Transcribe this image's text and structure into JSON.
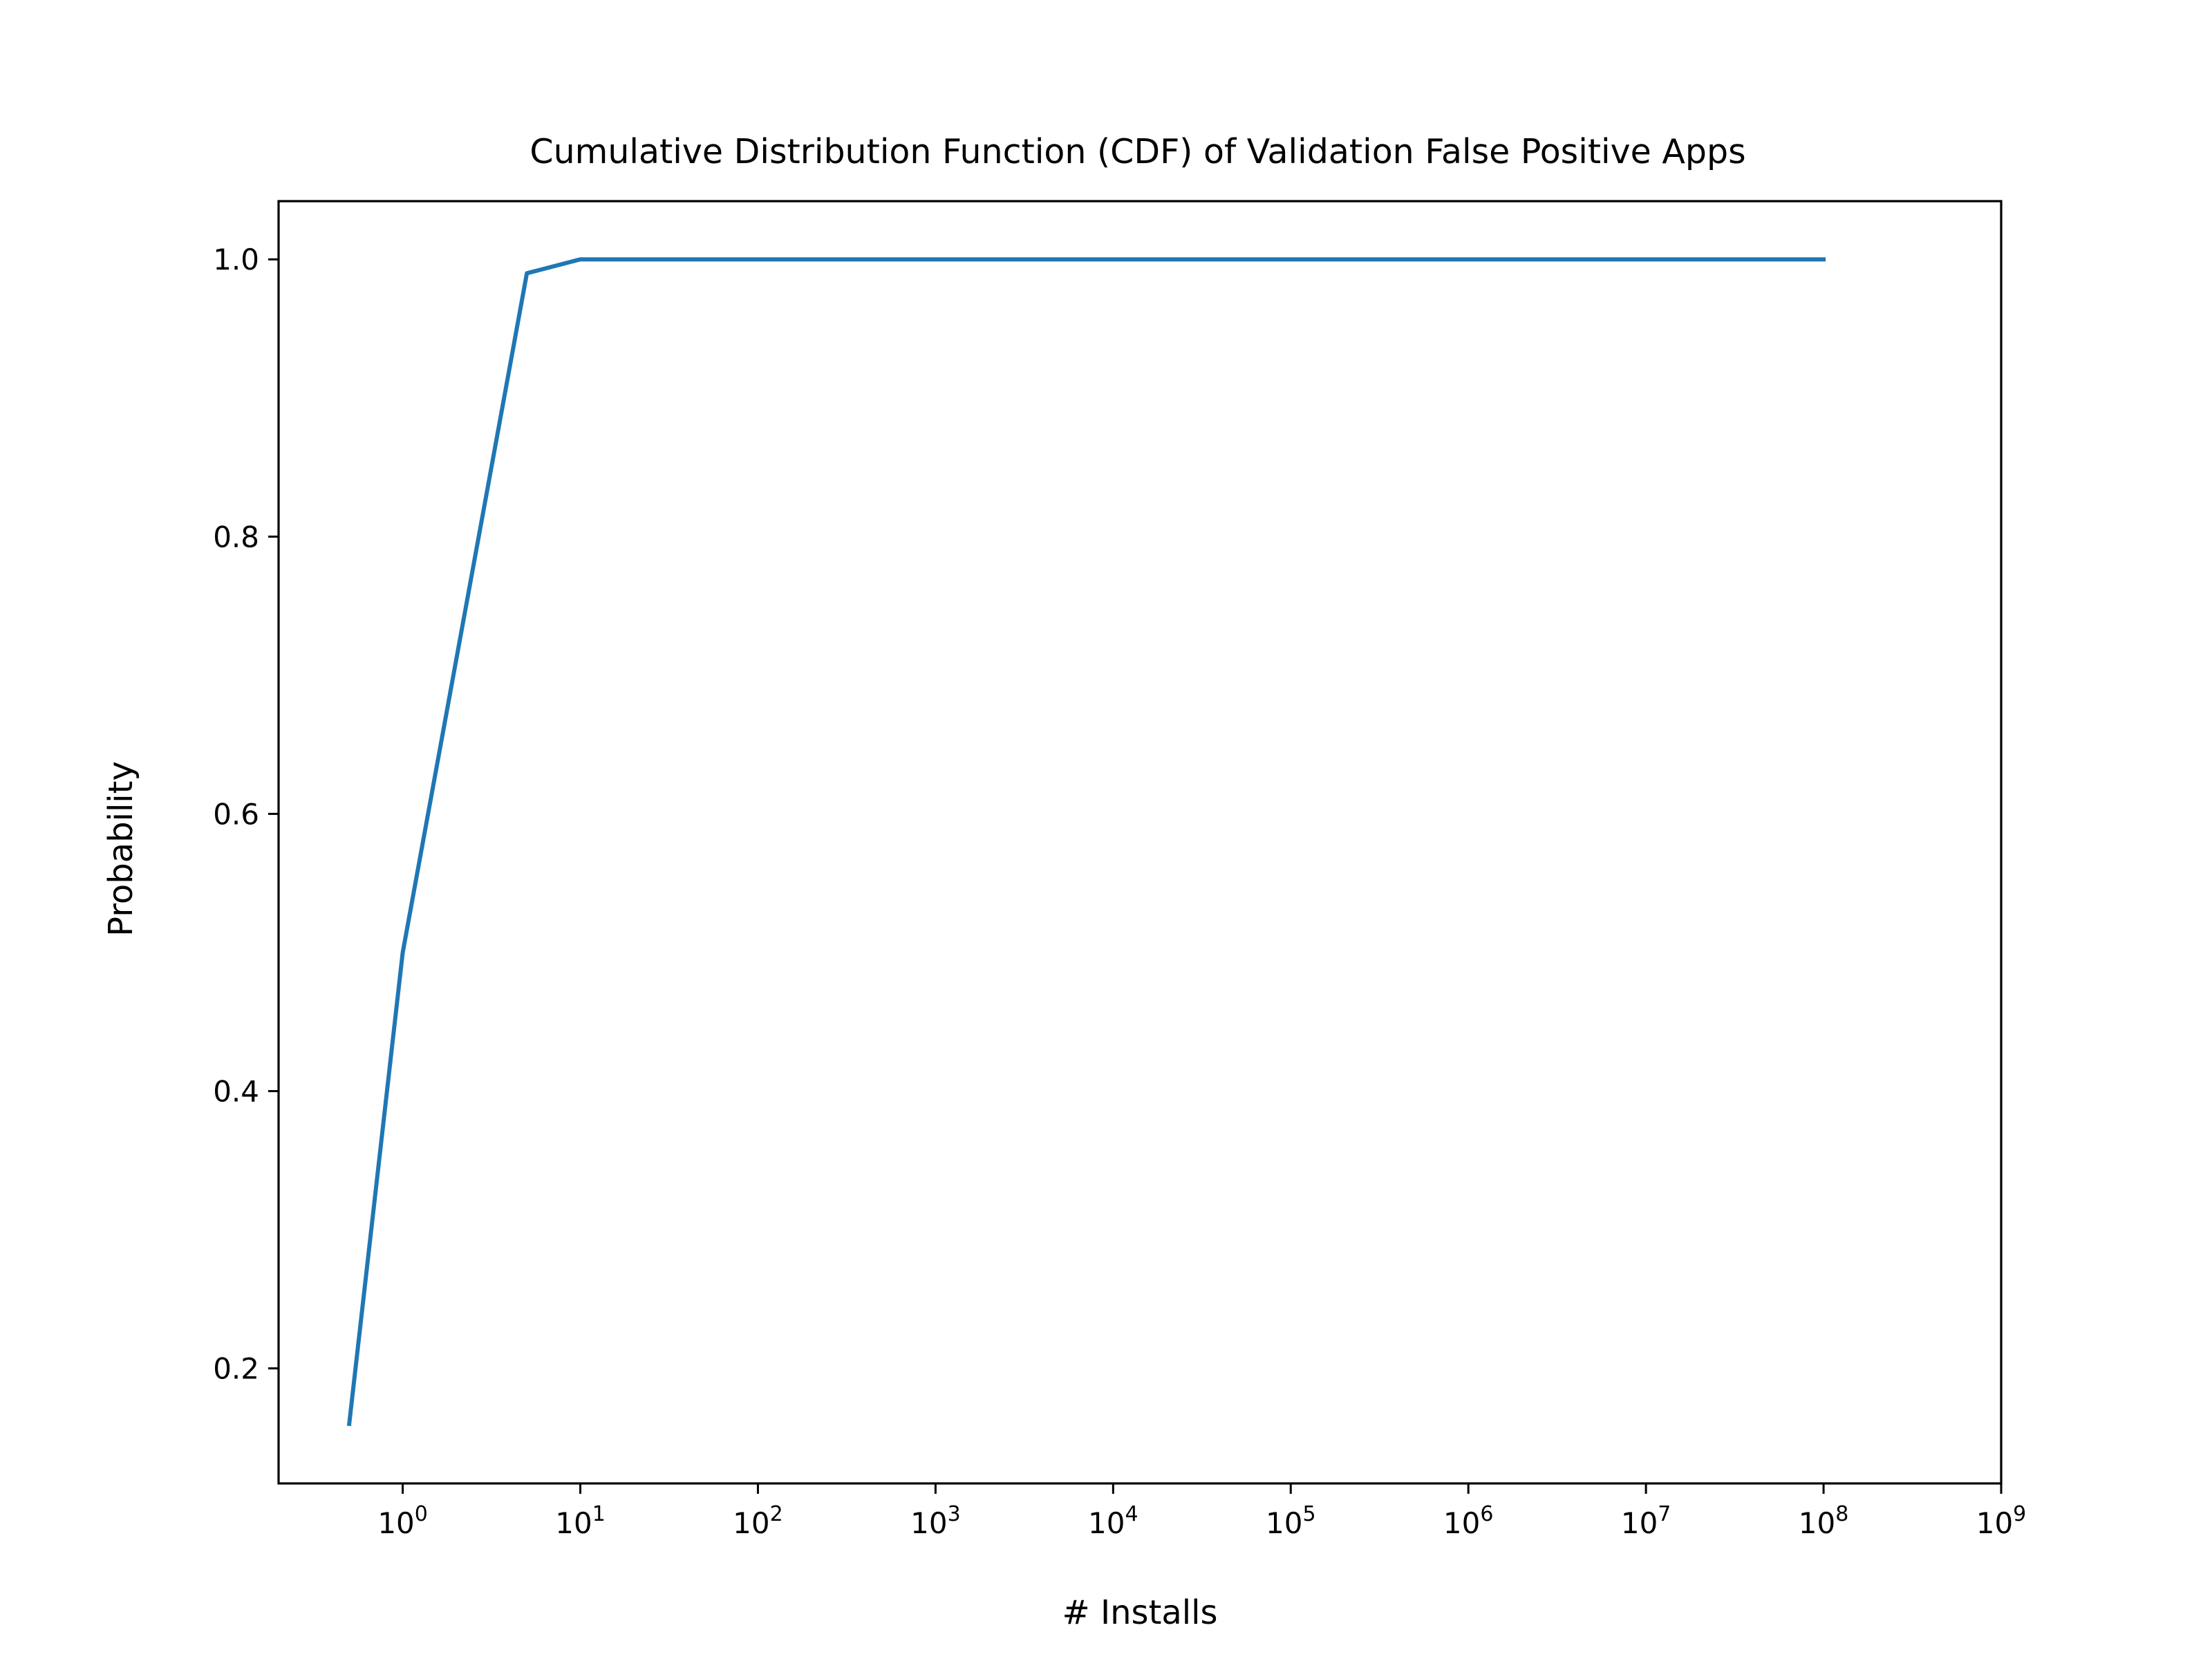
{
  "chart_data": {
    "type": "line",
    "title": "Cumulative Distribution Function (CDF) of Validation False Positive Apps",
    "xlabel": "# Installs",
    "ylabel": "Probability",
    "xscale": "log",
    "xlim": [
      0.2,
      1000000000
    ],
    "ylim": [
      0.117,
      1.042
    ],
    "grid": false,
    "x_ticks": [
      {
        "base": "10",
        "exp": "0",
        "value": 1
      },
      {
        "base": "10",
        "exp": "1",
        "value": 10
      },
      {
        "base": "10",
        "exp": "2",
        "value": 100
      },
      {
        "base": "10",
        "exp": "3",
        "value": 1000
      },
      {
        "base": "10",
        "exp": "4",
        "value": 10000
      },
      {
        "base": "10",
        "exp": "5",
        "value": 100000
      },
      {
        "base": "10",
        "exp": "6",
        "value": 1000000
      },
      {
        "base": "10",
        "exp": "7",
        "value": 10000000
      },
      {
        "base": "10",
        "exp": "8",
        "value": 100000000
      },
      {
        "base": "10",
        "exp": "9",
        "value": 1000000000
      }
    ],
    "y_ticks": [
      {
        "label": "0.2",
        "value": 0.2
      },
      {
        "label": "0.4",
        "value": 0.4
      },
      {
        "label": "0.6",
        "value": 0.6
      },
      {
        "label": "0.8",
        "value": 0.8
      },
      {
        "label": "1.0",
        "value": 1.0
      }
    ],
    "series": [
      {
        "color": "#1f77b4",
        "x": [
          0.5,
          1,
          5,
          10,
          50,
          100,
          500,
          1000,
          5000,
          10000,
          50000,
          100000,
          500000,
          1000000,
          5000000,
          10000000,
          50000000,
          100000000
        ],
        "y": [
          0.16,
          0.5,
          0.99,
          1.0,
          1.0,
          1.0,
          1.0,
          1.0,
          1.0,
          1.0,
          1.0,
          1.0,
          1.0,
          1.0,
          1.0,
          1.0,
          1.0,
          1.0
        ]
      }
    ]
  }
}
